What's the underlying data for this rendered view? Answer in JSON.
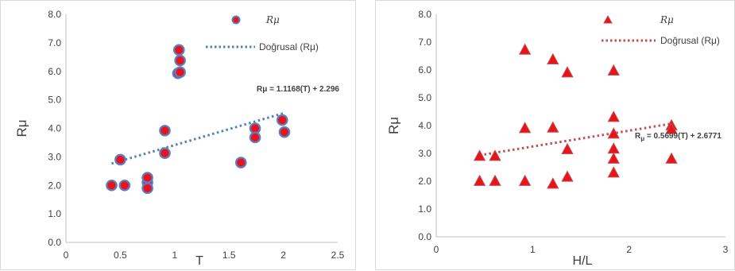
{
  "chart_data": [
    {
      "type": "scatter",
      "xlabel": "T",
      "ylabel": "Rμ",
      "xlim": [
        0,
        2.5
      ],
      "ylim": [
        0,
        8
      ],
      "xticks": [
        "0",
        "0.5",
        "1",
        "1.5",
        "2",
        "2.5"
      ],
      "yticks": [
        "0.0",
        "1.0",
        "2.0",
        "3.0",
        "4.0",
        "5.0",
        "6.0",
        "7.0",
        "8.0"
      ],
      "grid": false,
      "legend_position": "top-right",
      "series": [
        {
          "name": "Rμ",
          "marker": "circle",
          "color": "#e8131b",
          "edge_color": "#5b7fc1",
          "points": [
            {
              "x": 0.42,
              "y": 2.0
            },
            {
              "x": 0.5,
              "y": 2.9
            },
            {
              "x": 0.54,
              "y": 2.0
            },
            {
              "x": 0.75,
              "y": 2.1
            },
            {
              "x": 0.75,
              "y": 1.9
            },
            {
              "x": 0.75,
              "y": 2.27
            },
            {
              "x": 0.91,
              "y": 3.92
            },
            {
              "x": 0.91,
              "y": 3.13
            },
            {
              "x": 1.04,
              "y": 6.75
            },
            {
              "x": 1.05,
              "y": 6.38
            },
            {
              "x": 1.03,
              "y": 5.93
            },
            {
              "x": 1.05,
              "y": 5.97
            },
            {
              "x": 1.61,
              "y": 2.8
            },
            {
              "x": 1.74,
              "y": 4.0
            },
            {
              "x": 1.74,
              "y": 3.68
            },
            {
              "x": 1.99,
              "y": 4.29
            },
            {
              "x": 2.01,
              "y": 3.87
            }
          ]
        },
        {
          "name": "Doğrusal (Rμ)",
          "style": "dotted-trendline",
          "color": "#4f81bd",
          "x": [
            0.42,
            2.0
          ],
          "y": [
            2.765,
            4.53
          ]
        }
      ],
      "equation": "Rμ = 1.1168(T) + 2.296"
    },
    {
      "type": "scatter",
      "xlabel": "H/L",
      "ylabel": "Rμ",
      "xlim": [
        0,
        3
      ],
      "ylim": [
        0,
        8
      ],
      "xticks": [
        "0",
        "1",
        "2",
        "3"
      ],
      "yticks": [
        "0.0",
        "1.0",
        "2.0",
        "3.0",
        "4.0",
        "5.0",
        "6.0",
        "7.0",
        "8.0"
      ],
      "grid": false,
      "legend_position": "top-right",
      "series": [
        {
          "name": "Rμ",
          "marker": "triangle",
          "color": "#e8131b",
          "edge_color": "#c0504d",
          "points": [
            {
              "x": 0.45,
              "y": 2.9
            },
            {
              "x": 0.45,
              "y": 2.0
            },
            {
              "x": 0.61,
              "y": 2.9
            },
            {
              "x": 0.61,
              "y": 2.0
            },
            {
              "x": 0.92,
              "y": 6.72
            },
            {
              "x": 0.92,
              "y": 3.9
            },
            {
              "x": 0.92,
              "y": 2.0
            },
            {
              "x": 1.21,
              "y": 6.37
            },
            {
              "x": 1.21,
              "y": 3.92
            },
            {
              "x": 1.21,
              "y": 1.9
            },
            {
              "x": 1.36,
              "y": 5.9
            },
            {
              "x": 1.36,
              "y": 3.14
            },
            {
              "x": 1.36,
              "y": 2.15
            },
            {
              "x": 1.84,
              "y": 5.97
            },
            {
              "x": 1.84,
              "y": 4.3
            },
            {
              "x": 1.84,
              "y": 3.7
            },
            {
              "x": 1.84,
              "y": 3.16
            },
            {
              "x": 1.84,
              "y": 2.8
            },
            {
              "x": 1.84,
              "y": 2.3
            },
            {
              "x": 2.44,
              "y": 4.0
            },
            {
              "x": 2.44,
              "y": 3.87
            },
            {
              "x": 2.44,
              "y": 2.8
            }
          ]
        },
        {
          "name": "Doğrusal (Rμ)",
          "style": "dotted-trendline",
          "color": "#c0504d",
          "x": [
            0.45,
            2.44
          ],
          "y": [
            2.934,
            4.068
          ]
        }
      ],
      "equation_left": "R",
      "equation_sub": "μ",
      "equation_right": " = 0.5699(T) + 2.6771"
    }
  ]
}
